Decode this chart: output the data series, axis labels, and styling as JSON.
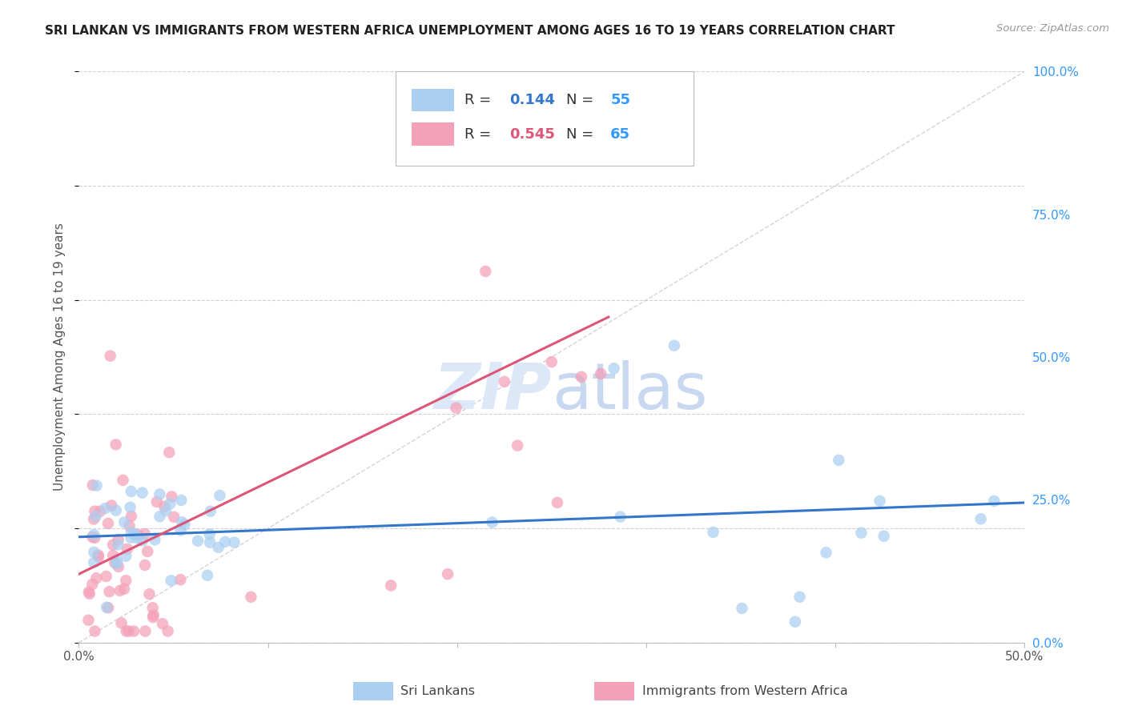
{
  "title": "SRI LANKAN VS IMMIGRANTS FROM WESTERN AFRICA UNEMPLOYMENT AMONG AGES 16 TO 19 YEARS CORRELATION CHART",
  "source": "Source: ZipAtlas.com",
  "ylabel": "Unemployment Among Ages 16 to 19 years",
  "xlim": [
    0.0,
    0.5
  ],
  "ylim": [
    0.0,
    1.0
  ],
  "sri_lanka_R": 0.144,
  "sri_lanka_N": 55,
  "west_africa_R": 0.545,
  "west_africa_N": 65,
  "sri_lanka_color": "#aacff0",
  "west_africa_color": "#f4a0b8",
  "sri_lanka_trend_color": "#3377cc",
  "west_africa_trend_color": "#dd5577",
  "diagonal_color": "#ccbbcc",
  "background_color": "#ffffff",
  "grid_color": "#cccccc",
  "watermark_color": "#dce8f8",
  "title_color": "#222222",
  "right_axis_color": "#3399ff",
  "ytick_positions": [
    0.0,
    0.25,
    0.5,
    0.75,
    1.0
  ],
  "ytick_labels": [
    "0.0%",
    "25.0%",
    "50.0%",
    "75.0%",
    "100.0%"
  ],
  "xtick_positions": [
    0.0,
    0.1,
    0.2,
    0.3,
    0.4,
    0.5
  ],
  "xtick_labels": [
    "0.0%",
    "",
    "",
    "",
    "",
    "50.0%"
  ],
  "sri_trend_x0": 0.0,
  "sri_trend_y0": 0.185,
  "sri_trend_x1": 0.5,
  "sri_trend_y1": 0.245,
  "wa_trend_x0": 0.0,
  "wa_trend_y0": 0.12,
  "wa_trend_x1": 0.28,
  "wa_trend_y1": 0.57
}
